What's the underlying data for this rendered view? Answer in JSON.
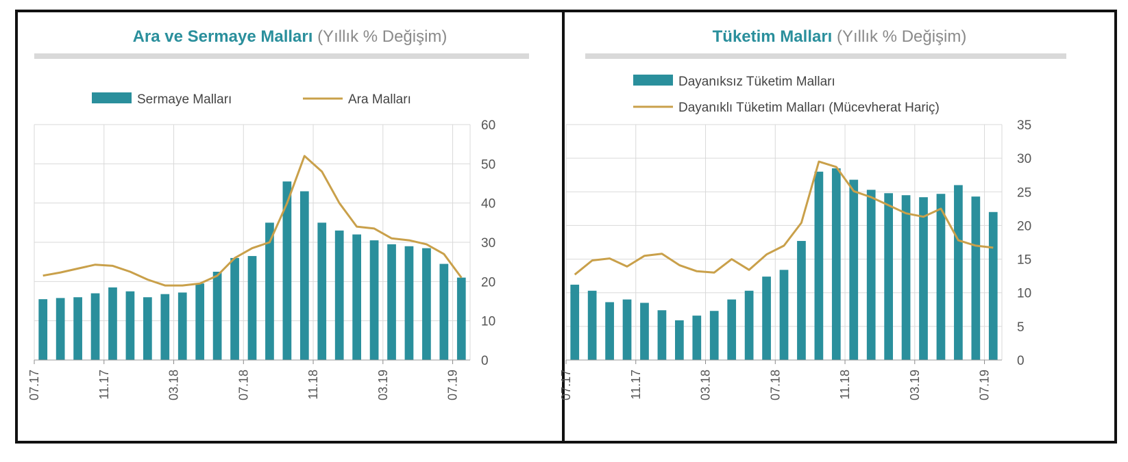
{
  "colors": {
    "bar": "#2a8f9c",
    "line": "#c9a04a",
    "grid": "#d9d9d9",
    "title": "#2a8f9c",
    "frame": "#111111"
  },
  "chart_data": [
    {
      "type": "bar+line",
      "title_main": "Ara ve Sermaye Malları",
      "title_sub": "(Yıllık % Değişim)",
      "legend": {
        "bar": "Sermaye Malları",
        "line": "Ara Malları",
        "placement": "top"
      },
      "y_axis_side": "right",
      "ylim": [
        0,
        60
      ],
      "yticks": [
        "0",
        "10",
        "20",
        "30",
        "40",
        "50",
        "60"
      ],
      "xtick_labels": [
        "07.17",
        "11.17",
        "03.18",
        "07.18",
        "11.18",
        "03.19",
        "07.19"
      ],
      "xtick_index": [
        0,
        4,
        8,
        12,
        16,
        20,
        24
      ],
      "series": [
        {
          "name": "Sermaye Malları",
          "kind": "bar",
          "values": [
            15.5,
            15.8,
            16,
            17,
            18.5,
            17.5,
            16,
            16.8,
            17.2,
            19.5,
            22.5,
            26,
            26.5,
            35,
            45.5,
            43,
            35,
            33,
            32,
            30.5,
            29.5,
            29,
            28.5,
            24.5,
            21
          ]
        },
        {
          "name": "Ara Malları",
          "kind": "line",
          "values": [
            21.5,
            22.3,
            23.3,
            24.3,
            24,
            22.5,
            20.5,
            19,
            19,
            19.5,
            21.5,
            26,
            28.5,
            30,
            40,
            52,
            48,
            40,
            34,
            33.5,
            31,
            30.5,
            29.5,
            27,
            21
          ]
        }
      ]
    },
    {
      "type": "bar+line",
      "title_main": "Tüketim Malları",
      "title_sub": "(Yıllık % Değişim)",
      "legend": {
        "bar": "Dayanıksız Tüketim Malları",
        "line": "Dayanıklı Tüketim Malları (Mücevherat Hariç)",
        "placement": "top"
      },
      "y_axis_side": "right",
      "ylim": [
        0,
        35
      ],
      "yticks": [
        "0",
        "5",
        "10",
        "15",
        "20",
        "25",
        "30",
        "35"
      ],
      "xtick_labels": [
        "07.17",
        "11.17",
        "03.18",
        "07.18",
        "11.18",
        "03.19",
        "07.19"
      ],
      "xtick_index": [
        0,
        4,
        8,
        12,
        16,
        20,
        24
      ],
      "series": [
        {
          "name": "Dayanıksız Tüketim Malları",
          "kind": "bar",
          "values": [
            11.2,
            10.3,
            8.6,
            9,
            8.5,
            7.4,
            5.9,
            6.6,
            7.3,
            9,
            10.3,
            12.4,
            13.4,
            17.7,
            28,
            28.5,
            26.8,
            25.3,
            24.8,
            24.5,
            24.2,
            24.7,
            26,
            24.3,
            22
          ]
        },
        {
          "name": "Dayanıklı Tüketim Malları (Mücevherat Hariç)",
          "kind": "line",
          "values": [
            12.7,
            14.8,
            15.1,
            13.9,
            15.5,
            15.8,
            14.1,
            13.2,
            13,
            15,
            13.4,
            15.7,
            17,
            20.4,
            29.5,
            28.7,
            25.1,
            24.2,
            23,
            21.8,
            21.3,
            22.5,
            17.8,
            17,
            16.7
          ]
        }
      ]
    }
  ]
}
